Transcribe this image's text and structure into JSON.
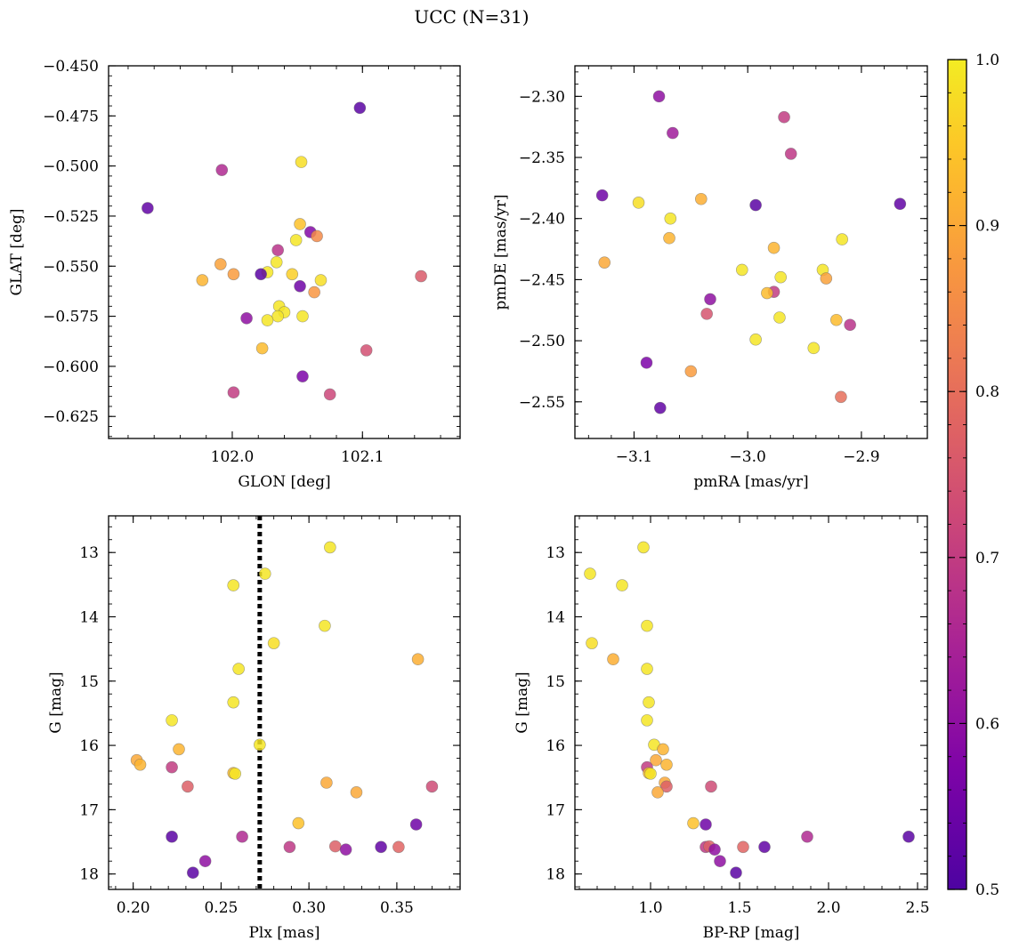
{
  "figure": {
    "title": "UCC (N=31)"
  },
  "colorbar": {
    "range": [
      0.5,
      1.0
    ],
    "ticks": [
      "0.5",
      "0.6",
      "0.7",
      "0.8",
      "0.9",
      "1.0"
    ],
    "colormap": "plasma"
  },
  "chart_data": [
    {
      "type": "scatter",
      "id": "glon_glat",
      "xlabel": "GLON [deg]",
      "ylabel": "GLAT [deg]",
      "xlim": [
        101.905,
        102.175
      ],
      "ylim": [
        -0.636,
        -0.45
      ],
      "xticks": [
        102.0,
        102.1
      ],
      "xtick_labels": [
        "102.0",
        "102.1"
      ],
      "yticks": [
        -0.45,
        -0.475,
        -0.5,
        -0.525,
        -0.55,
        -0.575,
        -0.6,
        -0.625
      ],
      "ytick_labels": [
        "−0.450",
        "−0.475",
        "−0.500",
        "−0.525",
        "−0.550",
        "−0.575",
        "−0.600",
        "−0.625"
      ],
      "points": [
        {
          "x": 102.098,
          "y": -0.471,
          "c": 0.52
        },
        {
          "x": 101.935,
          "y": -0.521,
          "c": 0.53
        },
        {
          "x": 101.992,
          "y": -0.502,
          "c": 0.66
        },
        {
          "x": 102.053,
          "y": -0.498,
          "c": 0.98
        },
        {
          "x": 102.06,
          "y": -0.533,
          "c": 0.58
        },
        {
          "x": 102.065,
          "y": -0.535,
          "c": 0.85
        },
        {
          "x": 102.052,
          "y": -0.529,
          "c": 0.94
        },
        {
          "x": 102.049,
          "y": -0.537,
          "c": 0.99
        },
        {
          "x": 102.035,
          "y": -0.542,
          "c": 0.68
        },
        {
          "x": 101.991,
          "y": -0.549,
          "c": 0.89
        },
        {
          "x": 102.001,
          "y": -0.554,
          "c": 0.88
        },
        {
          "x": 102.034,
          "y": -0.548,
          "c": 0.99
        },
        {
          "x": 102.027,
          "y": -0.553,
          "c": 0.99
        },
        {
          "x": 102.022,
          "y": -0.554,
          "c": 0.52
        },
        {
          "x": 102.046,
          "y": -0.554,
          "c": 0.96
        },
        {
          "x": 102.068,
          "y": -0.557,
          "c": 0.98
        },
        {
          "x": 101.977,
          "y": -0.557,
          "c": 0.92
        },
        {
          "x": 102.052,
          "y": -0.56,
          "c": 0.55
        },
        {
          "x": 102.063,
          "y": -0.563,
          "c": 0.87
        },
        {
          "x": 102.145,
          "y": -0.555,
          "c": 0.76
        },
        {
          "x": 102.036,
          "y": -0.57,
          "c": 0.99
        },
        {
          "x": 102.04,
          "y": -0.573,
          "c": 0.99
        },
        {
          "x": 102.035,
          "y": -0.575,
          "c": 0.99
        },
        {
          "x": 102.054,
          "y": -0.575,
          "c": 0.99
        },
        {
          "x": 102.027,
          "y": -0.577,
          "c": 0.99
        },
        {
          "x": 102.011,
          "y": -0.576,
          "c": 0.6
        },
        {
          "x": 102.023,
          "y": -0.591,
          "c": 0.93
        },
        {
          "x": 102.103,
          "y": -0.592,
          "c": 0.74
        },
        {
          "x": 102.054,
          "y": -0.605,
          "c": 0.57
        },
        {
          "x": 102.001,
          "y": -0.613,
          "c": 0.7
        },
        {
          "x": 102.075,
          "y": -0.614,
          "c": 0.72
        }
      ]
    },
    {
      "type": "scatter",
      "id": "pmra_pmde",
      "xlabel": "pmRA [mas/yr]",
      "ylabel": "pmDE [mas/yr]",
      "xlim": [
        -3.152,
        -2.842
      ],
      "ylim": [
        -2.58,
        -2.275
      ],
      "xticks": [
        -3.1,
        -3.0,
        -2.9
      ],
      "xtick_labels": [
        "−3.1",
        "−3.0",
        "−2.9"
      ],
      "yticks": [
        -2.3,
        -2.35,
        -2.4,
        -2.45,
        -2.5,
        -2.55
      ],
      "ytick_labels": [
        "−2.30",
        "−2.35",
        "−2.40",
        "−2.45",
        "−2.50",
        "−2.55"
      ],
      "points": [
        {
          "x": -3.078,
          "y": -2.3,
          "c": 0.6
        },
        {
          "x": -3.066,
          "y": -2.33,
          "c": 0.63
        },
        {
          "x": -2.968,
          "y": -2.317,
          "c": 0.7
        },
        {
          "x": -2.962,
          "y": -2.347,
          "c": 0.69
        },
        {
          "x": -3.128,
          "y": -2.381,
          "c": 0.55
        },
        {
          "x": -3.096,
          "y": -2.387,
          "c": 0.98
        },
        {
          "x": -3.041,
          "y": -2.384,
          "c": 0.91
        },
        {
          "x": -2.993,
          "y": -2.389,
          "c": 0.52
        },
        {
          "x": -2.866,
          "y": -2.388,
          "c": 0.53
        },
        {
          "x": -3.068,
          "y": -2.4,
          "c": 0.99
        },
        {
          "x": -3.069,
          "y": -2.416,
          "c": 0.92
        },
        {
          "x": -2.977,
          "y": -2.424,
          "c": 0.92
        },
        {
          "x": -2.917,
          "y": -2.417,
          "c": 0.99
        },
        {
          "x": -3.126,
          "y": -2.436,
          "c": 0.9
        },
        {
          "x": -3.005,
          "y": -2.442,
          "c": 0.99
        },
        {
          "x": -2.934,
          "y": -2.442,
          "c": 0.99
        },
        {
          "x": -2.931,
          "y": -2.449,
          "c": 0.89
        },
        {
          "x": -2.971,
          "y": -2.448,
          "c": 0.99
        },
        {
          "x": -2.977,
          "y": -2.46,
          "c": 0.7
        },
        {
          "x": -2.983,
          "y": -2.461,
          "c": 0.93
        },
        {
          "x": -3.033,
          "y": -2.466,
          "c": 0.6
        },
        {
          "x": -3.036,
          "y": -2.478,
          "c": 0.75
        },
        {
          "x": -2.972,
          "y": -2.481,
          "c": 0.99
        },
        {
          "x": -2.922,
          "y": -2.483,
          "c": 0.93
        },
        {
          "x": -2.91,
          "y": -2.487,
          "c": 0.68
        },
        {
          "x": -2.993,
          "y": -2.499,
          "c": 0.99
        },
        {
          "x": -2.942,
          "y": -2.506,
          "c": 0.99
        },
        {
          "x": -3.089,
          "y": -2.518,
          "c": 0.57
        },
        {
          "x": -3.05,
          "y": -2.525,
          "c": 0.88
        },
        {
          "x": -2.918,
          "y": -2.546,
          "c": 0.8
        },
        {
          "x": -3.077,
          "y": -2.555,
          "c": 0.53
        }
      ]
    },
    {
      "type": "scatter",
      "id": "plx_g",
      "xlabel": "Plx [mas]",
      "ylabel": "G [mag]",
      "xlim": [
        0.186,
        0.386
      ],
      "ylim": [
        18.24,
        12.43
      ],
      "y_inverted": true,
      "xticks": [
        0.2,
        0.25,
        0.3,
        0.35
      ],
      "xtick_labels": [
        "0.20",
        "0.25",
        "0.30",
        "0.35"
      ],
      "yticks": [
        13,
        14,
        15,
        16,
        17,
        18
      ],
      "ytick_labels": [
        "13",
        "14",
        "15",
        "16",
        "17",
        "18"
      ],
      "vline": {
        "x": 0.272,
        "style": "dotted"
      },
      "points": [
        {
          "x": 0.312,
          "y": 12.92,
          "c": 0.99
        },
        {
          "x": 0.275,
          "y": 13.33,
          "c": 0.99
        },
        {
          "x": 0.257,
          "y": 13.51,
          "c": 0.99
        },
        {
          "x": 0.309,
          "y": 14.14,
          "c": 0.99
        },
        {
          "x": 0.28,
          "y": 14.41,
          "c": 0.98
        },
        {
          "x": 0.362,
          "y": 14.66,
          "c": 0.91
        },
        {
          "x": 0.26,
          "y": 14.81,
          "c": 0.99
        },
        {
          "x": 0.257,
          "y": 15.33,
          "c": 0.99
        },
        {
          "x": 0.222,
          "y": 15.61,
          "c": 0.99
        },
        {
          "x": 0.272,
          "y": 15.99,
          "c": 0.99
        },
        {
          "x": 0.226,
          "y": 16.06,
          "c": 0.92
        },
        {
          "x": 0.202,
          "y": 16.23,
          "c": 0.9
        },
        {
          "x": 0.204,
          "y": 16.3,
          "c": 0.92
        },
        {
          "x": 0.222,
          "y": 16.34,
          "c": 0.7
        },
        {
          "x": 0.257,
          "y": 16.43,
          "c": 0.93
        },
        {
          "x": 0.258,
          "y": 16.44,
          "c": 0.99
        },
        {
          "x": 0.31,
          "y": 16.58,
          "c": 0.9
        },
        {
          "x": 0.37,
          "y": 16.64,
          "c": 0.73
        },
        {
          "x": 0.231,
          "y": 16.64,
          "c": 0.77
        },
        {
          "x": 0.327,
          "y": 16.73,
          "c": 0.9
        },
        {
          "x": 0.294,
          "y": 17.21,
          "c": 0.94
        },
        {
          "x": 0.361,
          "y": 17.23,
          "c": 0.55
        },
        {
          "x": 0.222,
          "y": 17.42,
          "c": 0.52
        },
        {
          "x": 0.262,
          "y": 17.42,
          "c": 0.66
        },
        {
          "x": 0.289,
          "y": 17.58,
          "c": 0.69
        },
        {
          "x": 0.315,
          "y": 17.57,
          "c": 0.77
        },
        {
          "x": 0.321,
          "y": 17.62,
          "c": 0.6
        },
        {
          "x": 0.341,
          "y": 17.58,
          "c": 0.53
        },
        {
          "x": 0.351,
          "y": 17.58,
          "c": 0.78
        },
        {
          "x": 0.241,
          "y": 17.8,
          "c": 0.6
        },
        {
          "x": 0.234,
          "y": 17.98,
          "c": 0.52
        }
      ]
    },
    {
      "type": "scatter",
      "id": "bprp_g",
      "xlabel": "BP-RP [mag]",
      "ylabel": "G [mag]",
      "xlim": [
        0.575,
        2.555
      ],
      "ylim": [
        18.24,
        12.43
      ],
      "y_inverted": true,
      "xticks": [
        1.0,
        1.5,
        2.0,
        2.5
      ],
      "xtick_labels": [
        "1.0",
        "1.5",
        "2.0",
        "2.5"
      ],
      "yticks": [
        13,
        14,
        15,
        16,
        17,
        18
      ],
      "ytick_labels": [
        "13",
        "14",
        "15",
        "16",
        "17",
        "18"
      ],
      "points": [
        {
          "x": 0.96,
          "y": 12.92,
          "c": 0.99
        },
        {
          "x": 0.66,
          "y": 13.33,
          "c": 0.99
        },
        {
          "x": 0.84,
          "y": 13.51,
          "c": 0.99
        },
        {
          "x": 0.98,
          "y": 14.14,
          "c": 0.99
        },
        {
          "x": 0.67,
          "y": 14.41,
          "c": 0.98
        },
        {
          "x": 0.79,
          "y": 14.66,
          "c": 0.91
        },
        {
          "x": 0.98,
          "y": 14.81,
          "c": 0.99
        },
        {
          "x": 0.99,
          "y": 15.33,
          "c": 0.99
        },
        {
          "x": 0.98,
          "y": 15.61,
          "c": 0.99
        },
        {
          "x": 1.02,
          "y": 15.99,
          "c": 0.99
        },
        {
          "x": 1.07,
          "y": 16.06,
          "c": 0.92
        },
        {
          "x": 1.03,
          "y": 16.23,
          "c": 0.9
        },
        {
          "x": 1.09,
          "y": 16.3,
          "c": 0.92
        },
        {
          "x": 0.98,
          "y": 16.34,
          "c": 0.7
        },
        {
          "x": 0.99,
          "y": 16.43,
          "c": 0.93
        },
        {
          "x": 1.0,
          "y": 16.44,
          "c": 0.99
        },
        {
          "x": 1.08,
          "y": 16.58,
          "c": 0.9
        },
        {
          "x": 1.34,
          "y": 16.64,
          "c": 0.73
        },
        {
          "x": 1.09,
          "y": 16.64,
          "c": 0.77
        },
        {
          "x": 1.04,
          "y": 16.73,
          "c": 0.9
        },
        {
          "x": 1.24,
          "y": 17.21,
          "c": 0.94
        },
        {
          "x": 1.31,
          "y": 17.23,
          "c": 0.55
        },
        {
          "x": 2.45,
          "y": 17.42,
          "c": 0.52
        },
        {
          "x": 1.88,
          "y": 17.42,
          "c": 0.66
        },
        {
          "x": 1.31,
          "y": 17.58,
          "c": 0.69
        },
        {
          "x": 1.33,
          "y": 17.57,
          "c": 0.77
        },
        {
          "x": 1.36,
          "y": 17.62,
          "c": 0.6
        },
        {
          "x": 1.64,
          "y": 17.58,
          "c": 0.53
        },
        {
          "x": 1.52,
          "y": 17.58,
          "c": 0.78
        },
        {
          "x": 1.39,
          "y": 17.8,
          "c": 0.6
        },
        {
          "x": 1.48,
          "y": 17.98,
          "c": 0.52
        }
      ]
    }
  ]
}
